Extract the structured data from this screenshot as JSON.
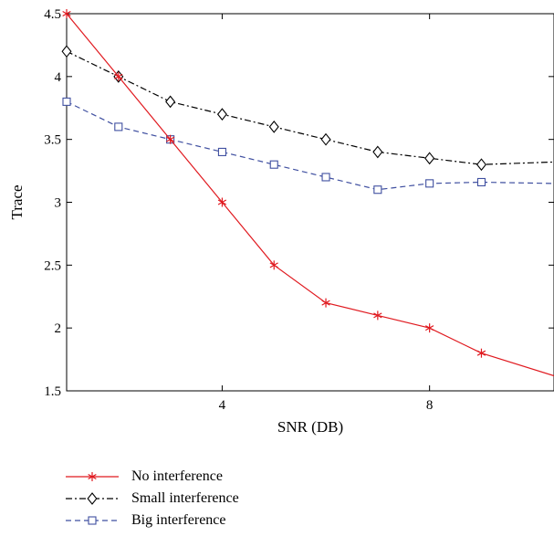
{
  "chart_data": {
    "type": "line",
    "xlabel": "SNR (DB)",
    "ylabel": "Trace",
    "xlim": [
      1,
      10.4
    ],
    "ylim": [
      1.5,
      4.5
    ],
    "xticks": [
      4,
      8
    ],
    "yticks": [
      1.5,
      2,
      2.5,
      3,
      3.5,
      4,
      4.5
    ],
    "ytick_labels": [
      "1.5",
      "2",
      "2.5",
      "3",
      "3.5",
      "4",
      "4.5"
    ],
    "xtick_labels": [
      "4",
      "8"
    ],
    "grid": false,
    "legend_position": "bottom-left, below plot",
    "series": [
      {
        "name": "No interference",
        "color": "#e0191f",
        "marker": "asterisk",
        "line_style": "solid",
        "x": [
          1,
          2,
          3,
          4,
          5,
          6,
          7,
          8,
          9,
          10.4
        ],
        "y": [
          4.5,
          4.0,
          3.5,
          3.0,
          2.5,
          2.2,
          2.1,
          2.0,
          1.8,
          1.62
        ]
      },
      {
        "name": "Small interference",
        "color": "#000000",
        "marker": "diamond",
        "line_style": "dash-dot",
        "x": [
          1,
          2,
          3,
          4,
          5,
          6,
          7,
          8,
          9,
          10.4
        ],
        "y": [
          4.2,
          4.0,
          3.8,
          3.7,
          3.6,
          3.5,
          3.4,
          3.35,
          3.3,
          3.32
        ]
      },
      {
        "name": "Big interference",
        "color": "#3f4fa0",
        "marker": "square",
        "line_style": "dashed",
        "x": [
          1,
          2,
          3,
          4,
          5,
          6,
          7,
          8,
          9,
          10.4
        ],
        "y": [
          3.8,
          3.6,
          3.5,
          3.4,
          3.3,
          3.2,
          3.1,
          3.15,
          3.16,
          3.15
        ]
      }
    ]
  }
}
